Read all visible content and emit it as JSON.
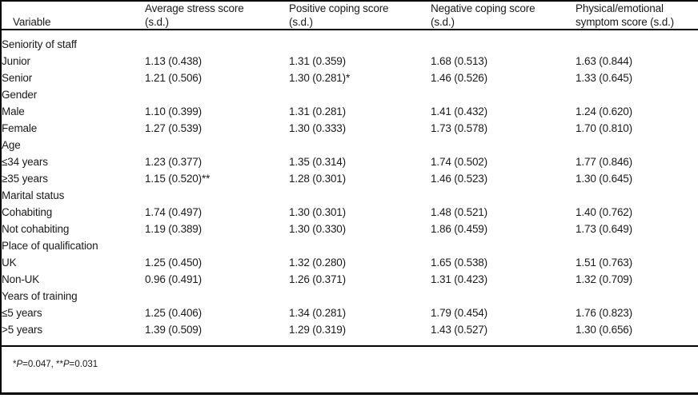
{
  "table": {
    "headers": [
      {
        "line1": "Variable",
        "line2": ""
      },
      {
        "line1": "Average stress score",
        "line2": "(s.d.)"
      },
      {
        "line1": "Positive coping score",
        "line2": "(s.d.)"
      },
      {
        "line1": "Negative coping score",
        "line2": "(s.d.)"
      },
      {
        "line1": "Physical/emotional",
        "line2": "symptom score (s.d.)"
      }
    ],
    "rows": [
      {
        "type": "group",
        "label": "Seniority of staff"
      },
      {
        "type": "data",
        "label": "Junior",
        "values": [
          "1.13 (0.438)",
          "1.31 (0.359)",
          "1.68 (0.513)",
          "1.63 (0.844)"
        ]
      },
      {
        "type": "data",
        "label": "Senior",
        "values": [
          "1.21 (0.506)",
          "1.30 (0.281)*",
          "1.46 (0.526)",
          "1.33 (0.645)"
        ]
      },
      {
        "type": "group",
        "label": "Gender"
      },
      {
        "type": "data",
        "label": "Male",
        "values": [
          "1.10 (0.399)",
          "1.31 (0.281)",
          "1.41 (0.432)",
          "1.24 (0.620)"
        ]
      },
      {
        "type": "data",
        "label": "Female",
        "values": [
          "1.27 (0.539)",
          "1.30 (0.333)",
          "1.73 (0.578)",
          "1.70 (0.810)"
        ]
      },
      {
        "type": "group",
        "label": "Age"
      },
      {
        "type": "data",
        "label": "≤34 years",
        "values": [
          "1.23 (0.377)",
          "1.35 (0.314)",
          "1.74 (0.502)",
          "1.77 (0.846)"
        ]
      },
      {
        "type": "data",
        "label": "≥35 years",
        "values": [
          "1.15 (0.520)**",
          "1.28 (0.301)",
          "1.46 (0.523)",
          "1.30 (0.645)"
        ]
      },
      {
        "type": "group",
        "label": "Marital status"
      },
      {
        "type": "data",
        "label": "Cohabiting",
        "values": [
          "1.74 (0.497)",
          "1.30 (0.301)",
          "1.48 (0.521)",
          "1.40 (0.762)"
        ]
      },
      {
        "type": "data",
        "label": "Not cohabiting",
        "values": [
          "1.19 (0.389)",
          "1.30 (0.330)",
          "1.86 (0.459)",
          "1.73 (0.649)"
        ]
      },
      {
        "type": "group",
        "label": "Place of qualification"
      },
      {
        "type": "data",
        "label": "UK",
        "values": [
          "1.25 (0.450)",
          "1.32 (0.280)",
          "1.65 (0.538)",
          "1.51 (0.763)"
        ]
      },
      {
        "type": "data",
        "label": "Non-UK",
        "values": [
          "0.96 (0.491)",
          "1.26 (0.371)",
          "1.31 (0.423)",
          "1.32 (0.709)"
        ]
      },
      {
        "type": "group",
        "label": "Years of training"
      },
      {
        "type": "data",
        "label": "≤5 years",
        "values": [
          "1.25 (0.406)",
          "1.34 (0.281)",
          "1.79 (0.454)",
          "1.76 (0.823)"
        ]
      },
      {
        "type": "data",
        "label": ">5 years",
        "values": [
          "1.39 (0.509)",
          "1.29 (0.319)",
          "1.43 (0.527)",
          "1.30 (0.656)"
        ]
      }
    ]
  },
  "footnote": {
    "parts": [
      {
        "text": "*"
      },
      {
        "text": "P"
      },
      {
        "text": "=0.047, "
      },
      {
        "text": "**"
      },
      {
        "text": "P"
      },
      {
        "text": "=0.031"
      }
    ]
  },
  "colors": {
    "text": "#1a1a1a",
    "rule": "#000000",
    "background": "#ffffff"
  }
}
